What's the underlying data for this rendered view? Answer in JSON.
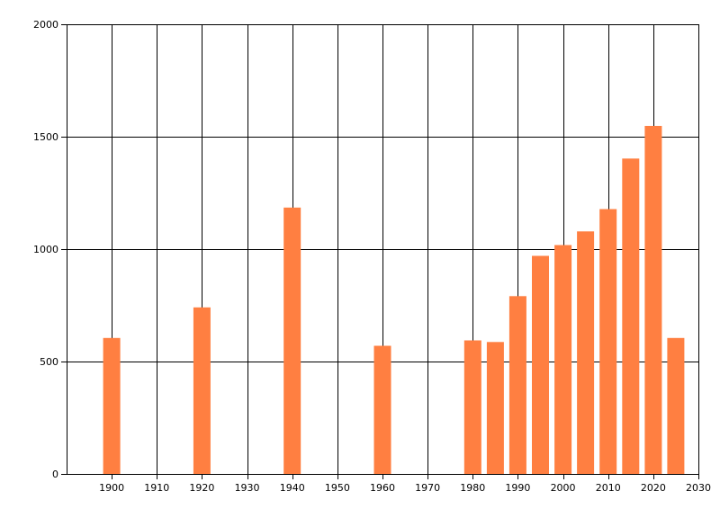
{
  "chart_data": {
    "type": "bar",
    "title": "",
    "xlabel": "",
    "ylabel": "",
    "bar_color": "#ff7f41",
    "grid": true,
    "xlim": [
      1890,
      2030
    ],
    "ylim": [
      0,
      2000
    ],
    "x_ticks": [
      1900,
      1910,
      1920,
      1930,
      1940,
      1950,
      1960,
      1970,
      1980,
      1990,
      2000,
      2010,
      2020,
      2030
    ],
    "y_ticks": [
      0,
      500,
      1000,
      1500,
      2000
    ],
    "series": [
      {
        "x": [
          1900,
          1920,
          1940,
          1960,
          1980,
          1985,
          1990,
          1995,
          2000,
          2005,
          2010,
          2015,
          2020,
          2025
        ],
        "values": [
          605,
          741,
          1185,
          570,
          594,
          587,
          791,
          970,
          1018,
          1079,
          1178,
          1403,
          1548,
          605
        ]
      }
    ]
  }
}
